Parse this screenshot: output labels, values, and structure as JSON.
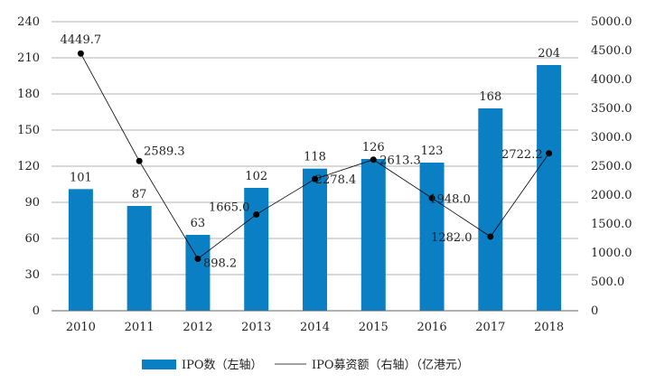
{
  "chart_data": {
    "type": "bar+line",
    "categories": [
      "2010",
      "2011",
      "2012",
      "2013",
      "2014",
      "2015",
      "2016",
      "2017",
      "2018"
    ],
    "series": [
      {
        "name": "IPO数（左轴）",
        "type": "bar",
        "axis": "left",
        "color": "#0a7fc4",
        "values": [
          101,
          87,
          63,
          102,
          118,
          126,
          123,
          168,
          204
        ],
        "labels": [
          "101",
          "87",
          "63",
          "102",
          "118",
          "126",
          "123",
          "168",
          "204"
        ]
      },
      {
        "name": "IPO募资额（右轴）（亿港元）",
        "type": "line",
        "axis": "right",
        "color": "#000000",
        "values": [
          4449.7,
          2589.3,
          898.2,
          1665.0,
          2278.4,
          2613.3,
          1948.0,
          1282.0,
          2722.2
        ],
        "labels": [
          "4449.7",
          "2589.3",
          "898.2",
          "1665.0",
          "2278.4",
          "2613.3",
          "1948.0",
          "1282.0",
          "2722.2"
        ]
      }
    ],
    "y_left": {
      "range": [
        0,
        240
      ],
      "ticks": [
        "0",
        "30",
        "60",
        "90",
        "120",
        "150",
        "180",
        "210",
        "240"
      ]
    },
    "y_right": {
      "range": [
        0,
        5000
      ],
      "ticks": [
        "0",
        "500.0",
        "1000.0",
        "1500.0",
        "2000.0",
        "2500.0",
        "3000.0",
        "3500.0",
        "4000.0",
        "4500.0",
        "5000.0"
      ]
    },
    "grid": true,
    "legend_position": "bottom-center",
    "title": ""
  }
}
